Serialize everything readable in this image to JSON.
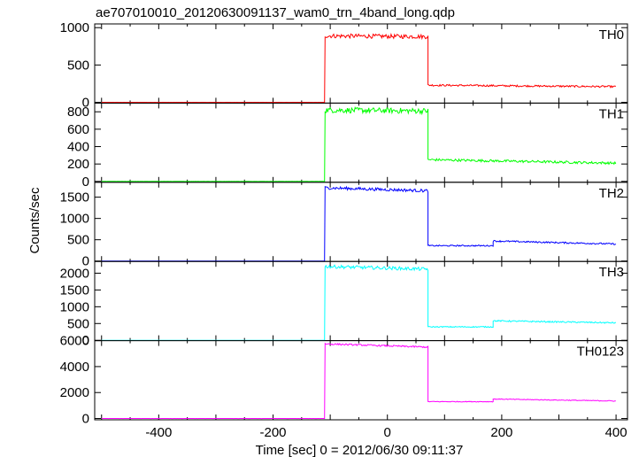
{
  "title": "ae707010010_20120630091137_wam0_trn_4band_long.qdp",
  "ylabel": "Counts/sec",
  "xlabel": "Time [sec] 0 = 2012/06/30 09:11:37",
  "chart_data": {
    "type": "line",
    "xlim": [
      -512,
      420
    ],
    "x_ticks": [
      -400,
      -200,
      0,
      200,
      400
    ],
    "panels": [
      {
        "name": "TH0",
        "color": "#ff0000",
        "ylim": [
          -10,
          1050
        ],
        "y_ticks": [
          0,
          500,
          1000
        ],
        "segments": [
          {
            "x_start": -500,
            "x_end": -109,
            "level_start": 0,
            "level_end": 0,
            "noise": 1
          },
          {
            "x_start": -109,
            "x_end": 71,
            "level_start": 890,
            "level_end": 880,
            "noise": 28
          },
          {
            "x_start": 71,
            "x_end": 400,
            "level_start": 230,
            "level_end": 210,
            "noise": 12
          }
        ]
      },
      {
        "name": "TH1",
        "color": "#00ff00",
        "ylim": [
          -10,
          900
        ],
        "y_ticks": [
          0,
          200,
          400,
          600,
          800
        ],
        "segments": [
          {
            "x_start": -500,
            "x_end": -109,
            "level_start": 0,
            "level_end": 0,
            "noise": 1
          },
          {
            "x_start": -109,
            "x_end": 71,
            "level_start": 820,
            "level_end": 810,
            "noise": 32
          },
          {
            "x_start": 71,
            "x_end": 400,
            "level_start": 250,
            "level_end": 210,
            "noise": 14
          }
        ]
      },
      {
        "name": "TH2",
        "color": "#0000ff",
        "ylim": [
          -10,
          1850
        ],
        "y_ticks": [
          0,
          500,
          1000,
          1500
        ],
        "segments": [
          {
            "x_start": -500,
            "x_end": -109,
            "level_start": 0,
            "level_end": 0,
            "noise": 1
          },
          {
            "x_start": -109,
            "x_end": 71,
            "level_start": 1720,
            "level_end": 1650,
            "noise": 35
          },
          {
            "x_start": 71,
            "x_end": 185,
            "level_start": 360,
            "level_end": 360,
            "noise": 15
          },
          {
            "x_start": 185,
            "x_end": 400,
            "level_start": 470,
            "level_end": 400,
            "noise": 18
          }
        ]
      },
      {
        "name": "TH3",
        "color": "#00ffff",
        "ylim": [
          -10,
          2350
        ],
        "y_ticks": [
          0,
          500,
          1000,
          1500,
          2000
        ],
        "segments": [
          {
            "x_start": -500,
            "x_end": -109,
            "level_start": 0,
            "level_end": 0,
            "noise": 1
          },
          {
            "x_start": -109,
            "x_end": 71,
            "level_start": 2200,
            "level_end": 2120,
            "noise": 50
          },
          {
            "x_start": 71,
            "x_end": 185,
            "level_start": 400,
            "level_end": 400,
            "noise": 15
          },
          {
            "x_start": 185,
            "x_end": 400,
            "level_start": 580,
            "level_end": 520,
            "noise": 20
          }
        ]
      },
      {
        "name": "TH0123",
        "color": "#ff00ff",
        "ylim": [
          -100,
          6000
        ],
        "y_ticks": [
          0,
          2000,
          4000,
          6000
        ],
        "segments": [
          {
            "x_start": -500,
            "x_end": -109,
            "level_start": 0,
            "level_end": 0,
            "noise": 2
          },
          {
            "x_start": -109,
            "x_end": 71,
            "level_start": 5750,
            "level_end": 5500,
            "noise": 60
          },
          {
            "x_start": 71,
            "x_end": 185,
            "level_start": 1300,
            "level_end": 1300,
            "noise": 30
          },
          {
            "x_start": 185,
            "x_end": 400,
            "level_start": 1500,
            "level_end": 1350,
            "noise": 30
          }
        ]
      }
    ]
  }
}
